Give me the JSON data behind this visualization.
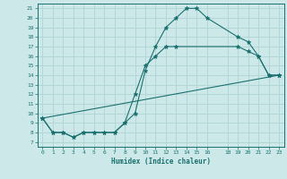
{
  "xlabel": "Humidex (Indice chaleur)",
  "background_color": "#cde8e8",
  "line_color": "#1a7070",
  "grid_color": "#aed4d4",
  "xlim": [
    -0.5,
    23.5
  ],
  "ylim": [
    6.5,
    21.5
  ],
  "xticks": [
    0,
    1,
    2,
    3,
    4,
    5,
    6,
    7,
    8,
    9,
    10,
    11,
    12,
    13,
    14,
    15,
    16,
    18,
    19,
    20,
    21,
    22,
    23
  ],
  "yticks": [
    7,
    8,
    9,
    10,
    11,
    12,
    13,
    14,
    15,
    16,
    17,
    18,
    19,
    20,
    21
  ],
  "line1_x": [
    0,
    1,
    2,
    3,
    4,
    5,
    6,
    7,
    8,
    9,
    10,
    11,
    12,
    13,
    14,
    15,
    16,
    19,
    20,
    21,
    22,
    23
  ],
  "line1_y": [
    9.5,
    8,
    8,
    7.5,
    8,
    8,
    8,
    8,
    9,
    10,
    14.5,
    17,
    19,
    20,
    21,
    21,
    20,
    18,
    17.5,
    16,
    14,
    14
  ],
  "line2_x": [
    0,
    1,
    2,
    3,
    4,
    5,
    6,
    7,
    8,
    9,
    10,
    11,
    12,
    13,
    19,
    20,
    21,
    22,
    23
  ],
  "line2_y": [
    9.5,
    8,
    8,
    7.5,
    8,
    8,
    8,
    8,
    9,
    12,
    15,
    16,
    17,
    17,
    17,
    16.5,
    16,
    14,
    14
  ],
  "line3_x": [
    0,
    23
  ],
  "line3_y": [
    9.5,
    14
  ]
}
